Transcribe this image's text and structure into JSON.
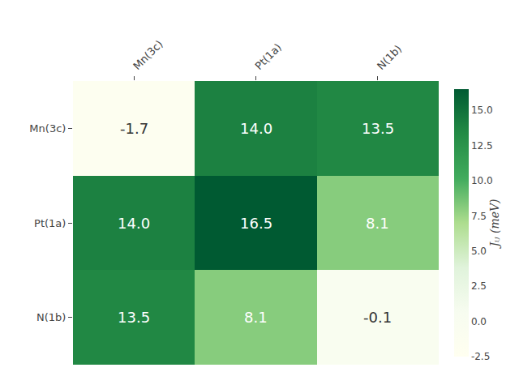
{
  "chart_data": {
    "type": "heatmap",
    "categories": [
      "Mn(3c)",
      "Pt(1a)",
      "N(1b)"
    ],
    "matrix": [
      [
        -1.7,
        14.0,
        13.5
      ],
      [
        14.0,
        16.5,
        8.1
      ],
      [
        13.5,
        8.1,
        -0.1
      ]
    ],
    "value_labels": [
      [
        "-1.7",
        "14.0",
        "13.5"
      ],
      [
        "14.0",
        "16.5",
        "8.1"
      ],
      [
        "13.5",
        "8.1",
        "-0.1"
      ]
    ],
    "data_labels": true,
    "colors": [
      "#fffff0",
      "#f7fcf0",
      "#e0f3db",
      "#addd8e",
      "#41ab5d",
      "#238b45",
      "#005a32"
    ],
    "colorbar_label": "Jᵢⱼ (meV)",
    "colorbar_range": [
      -2.5,
      16.5
    ],
    "colorbar_ticks": [
      -2.5,
      {
        "value": 0.0,
        "label": "0.0"
      },
      2.5,
      {
        "value": 5.0,
        "label": "5.0"
      },
      7.5,
      {
        "value": 10.0,
        "label": "10.0"
      },
      12.5,
      {
        "value": 15.0,
        "label": "15.0"
      }
    ],
    "grid": false
  }
}
